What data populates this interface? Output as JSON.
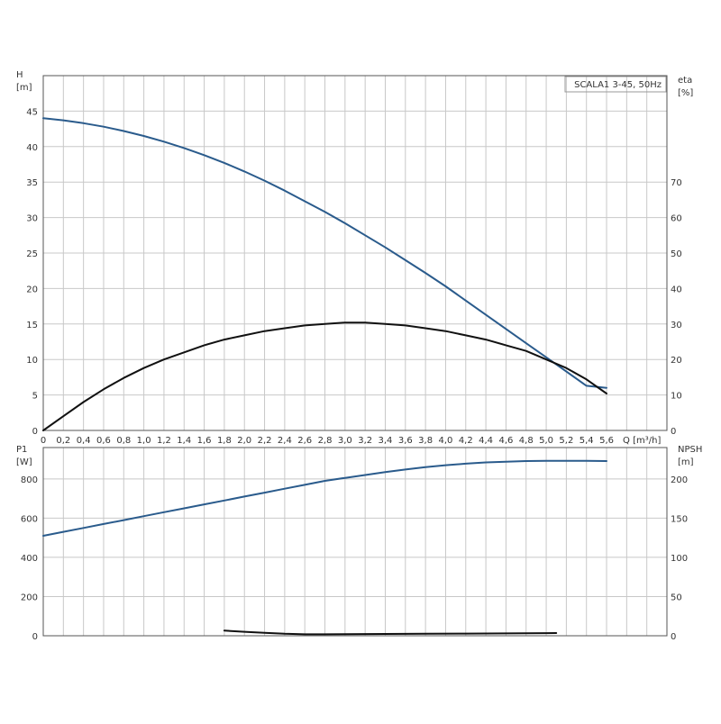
{
  "chart_data": [
    {
      "type": "line",
      "panel": "top",
      "title": "SCALA1 3-45, 50Hz",
      "x": [
        0,
        0.2,
        0.4,
        0.6,
        0.8,
        1.0,
        1.2,
        1.4,
        1.6,
        1.8,
        2.0,
        2.2,
        2.4,
        2.6,
        2.8,
        3.0,
        3.2,
        3.4,
        3.6,
        3.8,
        4.0,
        4.2,
        4.4,
        4.6,
        4.8,
        5.0,
        5.2,
        5.4,
        5.6
      ],
      "x_tick_labels": [
        "0",
        "0,2",
        "0,4",
        "0,6",
        "0,8",
        "1,0",
        "1,2",
        "1,4",
        "1,6",
        "1,8",
        "2,0",
        "2,2",
        "2,4",
        "2,6",
        "2,8",
        "3,0",
        "3,2",
        "3,4",
        "3,6",
        "3,8",
        "4,0",
        "4,2",
        "4,4",
        "4,6",
        "4,8",
        "5,0",
        "5,2",
        "5,4",
        "5,6"
      ],
      "xlabel": "Q [m³/h]",
      "xlim": [
        0,
        6.2
      ],
      "ylabel_left": [
        "H",
        "[m]"
      ],
      "ylim_left": [
        0,
        50
      ],
      "yticks_left": [
        0,
        5,
        10,
        15,
        20,
        25,
        30,
        35,
        40,
        45
      ],
      "ylabel_right": [
        "eta",
        "[%]"
      ],
      "ylim_right": [
        0,
        100
      ],
      "yticks_right": [
        0,
        10,
        20,
        30,
        40,
        50,
        60,
        70
      ],
      "grid": true,
      "series": [
        {
          "axis": "left",
          "color": "#2a5b8c",
          "values": [
            44.0,
            43.7,
            43.3,
            42.8,
            42.2,
            41.5,
            40.7,
            39.8,
            38.8,
            37.7,
            36.5,
            35.2,
            33.8,
            32.3,
            30.8,
            29.2,
            27.5,
            25.8,
            24.0,
            22.2,
            20.3,
            18.3,
            16.3,
            14.3,
            12.3,
            10.3,
            8.3,
            6.3,
            6.0
          ]
        },
        {
          "axis": "right",
          "color": "#111111",
          "x": [
            0,
            0.2,
            0.4,
            0.6,
            0.8,
            1.0,
            1.2,
            1.4,
            1.6,
            1.8,
            2.0,
            2.2,
            2.4,
            2.6,
            2.8,
            3.0,
            3.2,
            3.4,
            3.6,
            3.8,
            4.0,
            4.2,
            4.4,
            4.6,
            4.8,
            5.0,
            5.2,
            5.4,
            5.6
          ],
          "values": [
            0,
            4.0,
            8.0,
            11.6,
            14.8,
            17.6,
            20.0,
            22.0,
            24.0,
            25.6,
            26.8,
            28.0,
            28.8,
            29.6,
            30.0,
            30.4,
            30.4,
            30.0,
            29.6,
            28.8,
            28.0,
            26.8,
            25.6,
            24.0,
            22.4,
            20.0,
            17.6,
            14.4,
            10.4
          ]
        }
      ]
    },
    {
      "type": "line",
      "panel": "bottom",
      "x": [
        0,
        0.2,
        0.4,
        0.6,
        0.8,
        1.0,
        1.2,
        1.4,
        1.6,
        1.8,
        2.0,
        2.2,
        2.4,
        2.6,
        2.8,
        3.0,
        3.2,
        3.4,
        3.6,
        3.8,
        4.0,
        4.2,
        4.4,
        4.6,
        4.8,
        5.0,
        5.2,
        5.4,
        5.6
      ],
      "xlim": [
        0,
        6.2
      ],
      "ylabel_left": [
        "P1",
        "[W]"
      ],
      "ylim_left": [
        0,
        960
      ],
      "yticks_left": [
        0,
        200,
        400,
        600,
        800
      ],
      "ylabel_right": [
        "NPSH",
        "[m]"
      ],
      "ylim_right": [
        0,
        240
      ],
      "yticks_right": [
        0,
        50,
        100,
        150,
        200
      ],
      "grid": true,
      "series": [
        {
          "axis": "left",
          "color": "#2a5b8c",
          "values": [
            510,
            530,
            550,
            570,
            590,
            610,
            630,
            650,
            670,
            690,
            710,
            730,
            750,
            770,
            790,
            805,
            820,
            835,
            848,
            860,
            870,
            878,
            884,
            888,
            891,
            892,
            892,
            892,
            891
          ]
        },
        {
          "axis": "right",
          "color": "#111111",
          "x": [
            1.8,
            2.0,
            2.2,
            2.4,
            2.6,
            2.8,
            3.0,
            3.4,
            3.8,
            4.2,
            4.6,
            5.0,
            5.1
          ],
          "values": [
            6.5,
            5.0,
            3.8,
            2.5,
            1.8,
            1.8,
            2.0,
            2.3,
            2.5,
            2.8,
            3.0,
            3.3,
            3.5
          ]
        }
      ]
    }
  ]
}
